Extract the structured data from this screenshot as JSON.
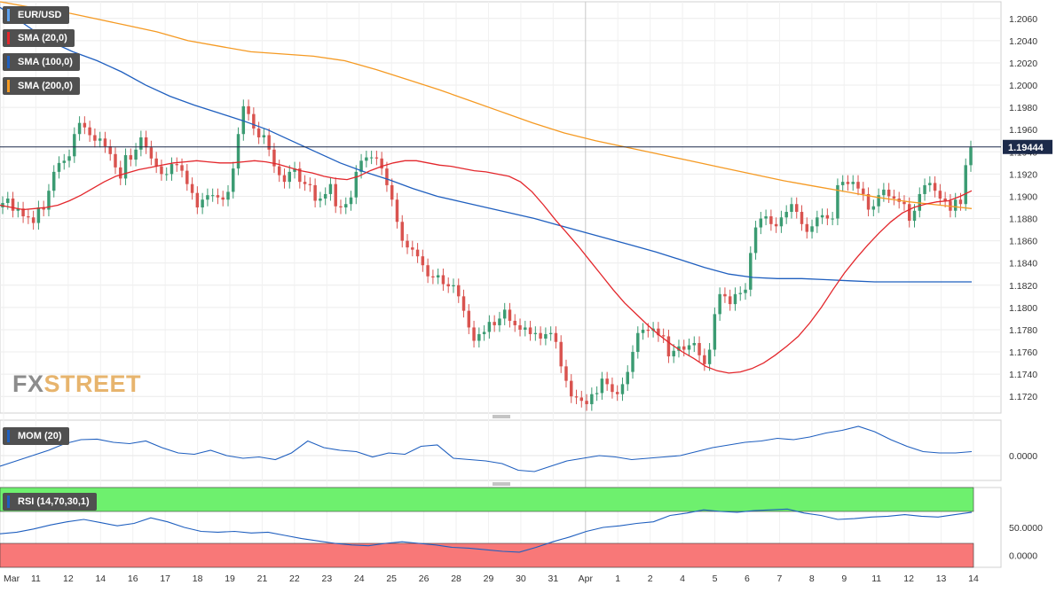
{
  "instrument": "EUR/USD",
  "brand": {
    "part1": "FX",
    "part2": "STREET"
  },
  "colors": {
    "up": "#3b9b72",
    "down": "#d9534f",
    "sma20": "#e3272c",
    "sma100": "#1f5fbf",
    "sma200": "#f59a23",
    "rsi_over": "#6ef06e",
    "rsi_under": "#f87878",
    "panel_bg": "#f7f7f7"
  },
  "price_label": "1.19444",
  "legends": {
    "instrument": "EUR/USD",
    "sma20": "SMA (20,0)",
    "sma100": "SMA (100,0)",
    "sma200": "SMA (200,0)",
    "mom": "MOM (20)",
    "rsi": "RSI (14,70,30,1)"
  },
  "price_axis": [
    "1.2060",
    "1.2040",
    "1.2020",
    "1.2000",
    "1.1980",
    "1.1960",
    "1.1940",
    "1.1920",
    "1.1900",
    "1.1880",
    "1.1860",
    "1.1840",
    "1.1820",
    "1.1800",
    "1.1780",
    "1.1760",
    "1.1740",
    "1.1720"
  ],
  "mom_axis": [
    "0.0000"
  ],
  "rsi_axis": [
    "50.0000",
    "0.0000"
  ],
  "date_labels": [
    "Mar",
    "11",
    "12",
    "14",
    "16",
    "17",
    "18",
    "19",
    "21",
    "22",
    "23",
    "24",
    "25",
    "26",
    "28",
    "29",
    "30",
    "31",
    "Apr",
    "1",
    "2",
    "4",
    "5",
    "6",
    "7",
    "8",
    "9",
    "11",
    "12",
    "13",
    "14"
  ],
  "chart_data": {
    "type": "candlestick",
    "title": "EUR/USD",
    "ylim": [
      1.1705,
      1.2075
    ],
    "current_price": 1.19444,
    "x_labels": [
      "Mar",
      "11",
      "12",
      "14",
      "16",
      "17",
      "18",
      "19",
      "21",
      "22",
      "23",
      "24",
      "25",
      "26",
      "28",
      "29",
      "30",
      "31",
      "Apr",
      "1",
      "2",
      "4",
      "5",
      "6",
      "7",
      "8",
      "9",
      "11",
      "12",
      "13",
      "14"
    ],
    "candles_close": [
      1.1894,
      1.1898,
      1.1887,
      1.1889,
      1.1882,
      1.1881,
      1.1876,
      1.189,
      1.1888,
      1.1905,
      1.1922,
      1.193,
      1.1932,
      1.1936,
      1.1956,
      1.1966,
      1.1962,
      1.1955,
      1.195,
      1.1952,
      1.1945,
      1.1938,
      1.1926,
      1.1916,
      1.1937,
      1.1933,
      1.1942,
      1.1953,
      1.1944,
      1.1934,
      1.1927,
      1.192,
      1.192,
      1.1929,
      1.1928,
      1.1923,
      1.1911,
      1.1903,
      1.189,
      1.1897,
      1.1901,
      1.1901,
      1.1899,
      1.1897,
      1.1904,
      1.1925,
      1.1956,
      1.1981,
      1.1974,
      1.1961,
      1.1953,
      1.1955,
      1.1942,
      1.1927,
      1.1919,
      1.1913,
      1.1922,
      1.1925,
      1.1913,
      1.1911,
      1.191,
      1.1896,
      1.1898,
      1.1902,
      1.1911,
      1.1891,
      1.189,
      1.1893,
      1.1899,
      1.1922,
      1.1932,
      1.1935,
      1.1935,
      1.1934,
      1.1925,
      1.191,
      1.1897,
      1.1877,
      1.186,
      1.1854,
      1.1852,
      1.1846,
      1.1838,
      1.1828,
      1.1827,
      1.1829,
      1.1821,
      1.1819,
      1.182,
      1.181,
      1.1797,
      1.1782,
      1.177,
      1.1776,
      1.1778,
      1.1787,
      1.1784,
      1.179,
      1.1798,
      1.1788,
      1.1784,
      1.178,
      1.1782,
      1.1776,
      1.1777,
      1.1772,
      1.1776,
      1.1777,
      1.1769,
      1.1747,
      1.1734,
      1.172,
      1.1719,
      1.1716,
      1.1713,
      1.1722,
      1.1723,
      1.1736,
      1.1731,
      1.1724,
      1.1722,
      1.1731,
      1.1742,
      1.176,
      1.1777,
      1.178,
      1.1779,
      1.1781,
      1.1775,
      1.1774,
      1.1756,
      1.1761,
      1.1765,
      1.1762,
      1.1766,
      1.1768,
      1.1757,
      1.1749,
      1.1762,
      1.1794,
      1.1812,
      1.181,
      1.1803,
      1.1812,
      1.1813,
      1.1816,
      1.1849,
      1.1872,
      1.188,
      1.1882,
      1.1875,
      1.1873,
      1.1881,
      1.1886,
      1.1893,
      1.1886,
      1.1875,
      1.1868,
      1.1873,
      1.1881,
      1.1883,
      1.188,
      1.188,
      1.191,
      1.1913,
      1.1911,
      1.1913,
      1.1907,
      1.1902,
      1.1888,
      1.1891,
      1.1901,
      1.1906,
      1.19,
      1.1898,
      1.1895,
      1.1893,
      1.1878,
      1.1887,
      1.1902,
      1.191,
      1.1912,
      1.1905,
      1.1898,
      1.1896,
      1.1887,
      1.1897,
      1.1893,
      1.1928,
      1.1944
    ],
    "sma20": [
      1.1892,
      1.189,
      1.1888,
      1.1889,
      1.189,
      1.1892,
      1.1896,
      1.1901,
      1.1907,
      1.1913,
      1.1918,
      1.1921,
      1.1924,
      1.1926,
      1.1928,
      1.193,
      1.1931,
      1.1932,
      1.1931,
      1.193,
      1.193,
      1.1931,
      1.1932,
      1.1931,
      1.1929,
      1.1926,
      1.1923,
      1.1921,
      1.1918,
      1.1916,
      1.1915,
      1.1918,
      1.1923,
      1.1927,
      1.193,
      1.1932,
      1.1932,
      1.193,
      1.1928,
      1.1927,
      1.1925,
      1.1923,
      1.1922,
      1.192,
      1.1918,
      1.1913,
      1.1904,
      1.1892,
      1.1879,
      1.1867,
      1.1855,
      1.1842,
      1.1829,
      1.1816,
      1.1804,
      1.1794,
      1.1784,
      1.1775,
      1.1767,
      1.176,
      1.1754,
      1.1747,
      1.1743,
      1.1741,
      1.1742,
      1.1745,
      1.175,
      1.1757,
      1.1765,
      1.1774,
      1.1786,
      1.18,
      1.1816,
      1.1831,
      1.1844,
      1.1856,
      1.1867,
      1.1877,
      1.1885,
      1.189,
      1.1893,
      1.1895,
      1.1896,
      1.19,
      1.1905
    ],
    "sma100": [
      1.207,
      1.2055,
      1.204,
      1.203,
      1.2022,
      1.2012,
      1.2,
      1.199,
      1.1982,
      1.1975,
      1.1968,
      1.196,
      1.195,
      1.194,
      1.193,
      1.1922,
      1.1915,
      1.1907,
      1.19,
      1.1895,
      1.189,
      1.1885,
      1.188,
      1.1874,
      1.1868,
      1.1862,
      1.1856,
      1.185,
      1.1843,
      1.1836,
      1.183,
      1.1827,
      1.1826,
      1.1826,
      1.1825,
      1.1824,
      1.1823,
      1.1823,
      1.1823,
      1.1823,
      1.1823
    ],
    "sma200": [
      1.2075,
      1.207,
      1.2066,
      1.206,
      1.2054,
      1.2048,
      1.204,
      1.2035,
      1.203,
      1.2028,
      1.2026,
      1.2022,
      1.2014,
      1.2005,
      1.1996,
      1.1986,
      1.1976,
      1.1966,
      1.1957,
      1.195,
      1.1944,
      1.1938,
      1.1932,
      1.1926,
      1.192,
      1.1914,
      1.1909,
      1.1904,
      1.1899,
      1.1895,
      1.1892,
      1.1889
    ],
    "mom": [
      -0.004,
      -0.002,
      0.0,
      0.002,
      0.0045,
      0.006,
      0.0062,
      0.005,
      0.0045,
      0.0055,
      0.003,
      0.001,
      0.0005,
      0.002,
      0.0,
      -0.001,
      -0.0005,
      -0.0015,
      0.001,
      0.0055,
      0.003,
      0.002,
      0.0015,
      -0.0005,
      0.001,
      0.0005,
      0.0035,
      0.004,
      -0.001,
      -0.0015,
      -0.002,
      -0.003,
      -0.0055,
      -0.006,
      -0.004,
      -0.002,
      -0.001,
      0.0,
      -0.0005,
      -0.0015,
      -0.001,
      -0.0005,
      0.0,
      0.0015,
      0.003,
      0.004,
      0.005,
      0.0055,
      0.0065,
      0.006,
      0.007,
      0.0085,
      0.0095,
      0.011,
      0.009,
      0.006,
      0.0035,
      0.0015,
      0.001,
      0.001,
      0.0015
    ],
    "rsi": [
      42,
      44,
      48,
      53,
      57,
      60,
      56,
      52,
      55,
      62,
      57,
      50,
      45,
      44,
      45,
      43,
      44,
      40,
      36,
      33,
      30,
      28,
      27,
      30,
      32,
      30,
      28,
      25,
      24,
      22,
      20,
      19,
      25,
      32,
      38,
      45,
      50,
      52,
      55,
      57,
      65,
      68,
      72,
      70,
      69,
      71,
      72,
      73,
      68,
      65,
      60,
      61,
      63,
      64,
      66,
      64,
      63,
      66,
      69
    ]
  }
}
